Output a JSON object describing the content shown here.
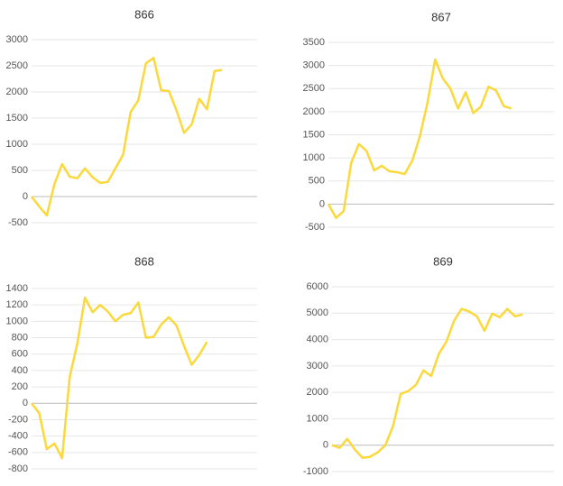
{
  "chart_data": [
    {
      "type": "line",
      "title": "866",
      "color": "#fbd83c",
      "grid": true,
      "ylim": [
        -500,
        3000
      ],
      "yticks": [
        -500,
        0,
        500,
        1000,
        1500,
        2000,
        2500,
        3000
      ],
      "values": [
        0,
        -190,
        -360,
        240,
        620,
        380,
        350,
        540,
        370,
        260,
        280,
        540,
        800,
        1620,
        1840,
        2550,
        2650,
        2030,
        2020,
        1650,
        1220,
        1380,
        1870,
        1670,
        2400,
        2420
      ]
    },
    {
      "type": "line",
      "title": "867",
      "color": "#fbd83c",
      "grid": true,
      "ylim": [
        -500,
        3500
      ],
      "yticks": [
        -500,
        0,
        500,
        1000,
        1500,
        2000,
        2500,
        3000,
        3500
      ],
      "values": [
        0,
        -300,
        -150,
        900,
        1300,
        1150,
        730,
        830,
        710,
        690,
        650,
        940,
        1470,
        2200,
        3130,
        2720,
        2500,
        2070,
        2420,
        1970,
        2110,
        2540,
        2460,
        2120,
        2070
      ]
    },
    {
      "type": "line",
      "title": "868",
      "color": "#fbd83c",
      "grid": true,
      "ylim": [
        -800,
        1400
      ],
      "yticks": [
        -800,
        -600,
        -400,
        -200,
        0,
        200,
        400,
        600,
        800,
        1000,
        1200,
        1400
      ],
      "values": [
        0,
        -120,
        -560,
        -490,
        -670,
        320,
        730,
        1290,
        1110,
        1200,
        1120,
        1000,
        1080,
        1100,
        1230,
        800,
        810,
        960,
        1050,
        950,
        700,
        470,
        590,
        750
      ]
    },
    {
      "type": "line",
      "title": "869",
      "color": "#fbd83c",
      "grid": true,
      "ylim": [
        -1000,
        6000
      ],
      "yticks": [
        -1000,
        0,
        1000,
        2000,
        3000,
        4000,
        5000,
        6000
      ],
      "values": [
        0,
        -100,
        240,
        -170,
        -480,
        -440,
        -270,
        0,
        720,
        1940,
        2050,
        2280,
        2830,
        2620,
        3450,
        3920,
        4710,
        5160,
        5060,
        4880,
        4330,
        4980,
        4850,
        5160,
        4880,
        4950
      ]
    }
  ]
}
